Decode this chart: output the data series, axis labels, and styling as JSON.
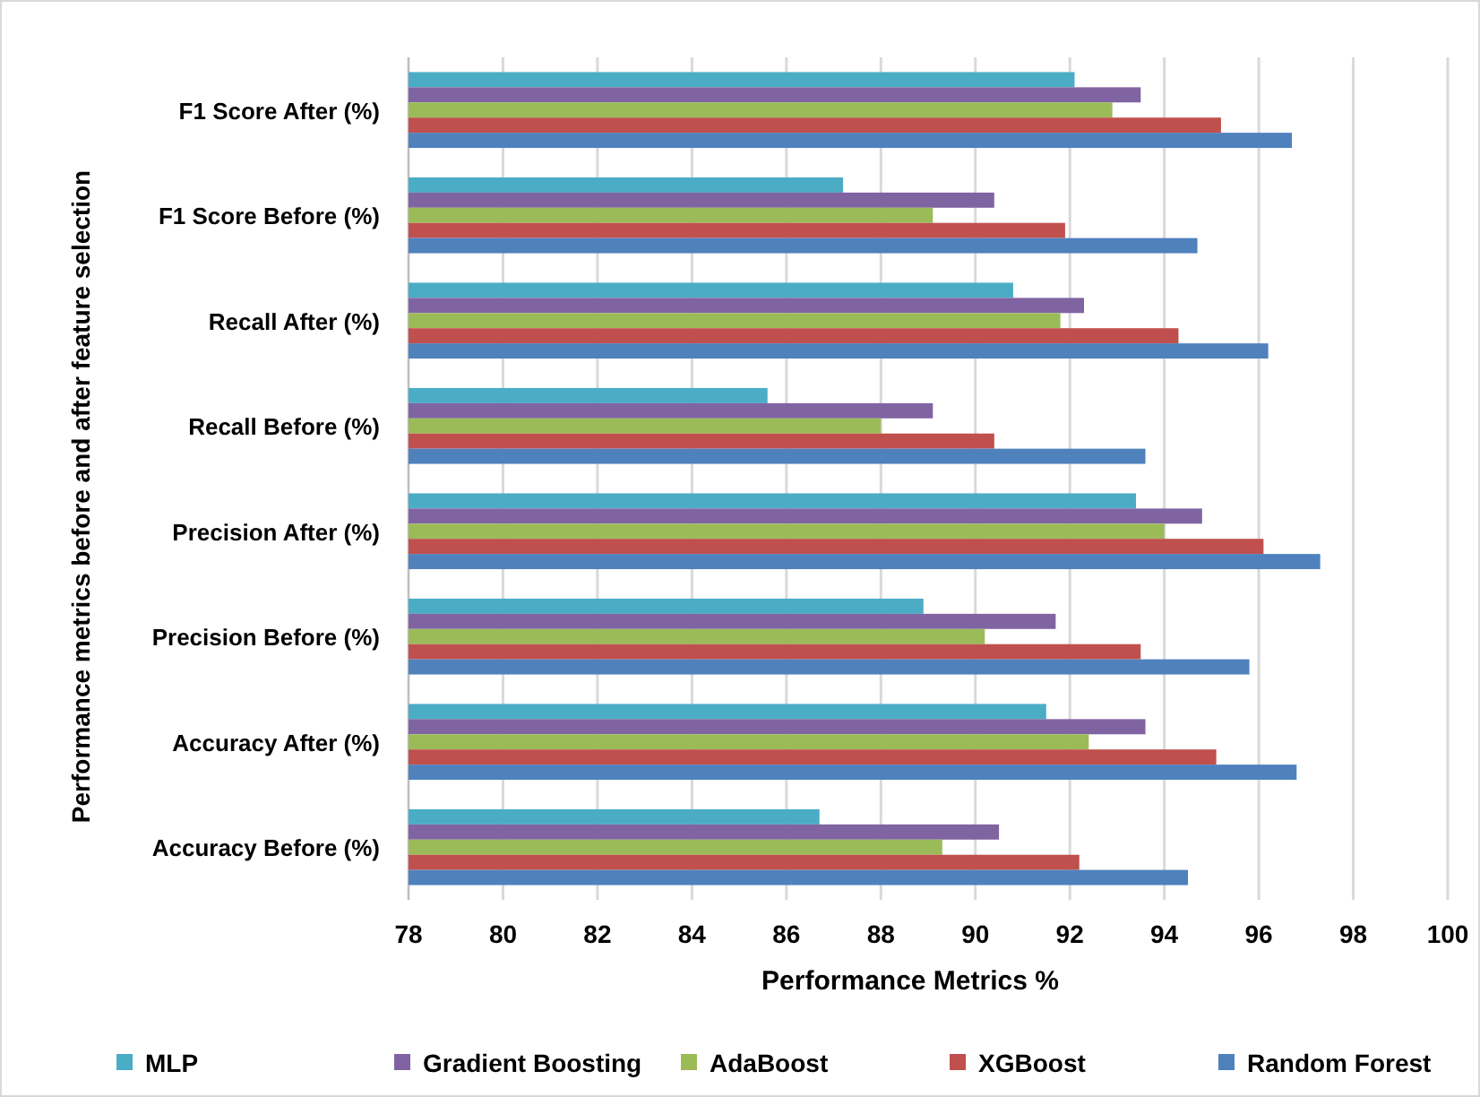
{
  "chart_data": {
    "type": "bar",
    "orientation": "horizontal",
    "xlabel": "Performance Metrics %",
    "ylabel": "Performance metrics before and after feature selection",
    "categories": [
      "F1 Score After (%)",
      "F1 Score Before (%)",
      "Recall After (%)",
      "Recall Before (%)",
      "Precision After (%)",
      "Precision Before (%)",
      "Accuracy After (%)",
      "Accuracy Before (%)"
    ],
    "series": [
      {
        "name": "MLP",
        "color": "#4bacc6",
        "values": [
          92.1,
          87.2,
          90.8,
          85.6,
          93.4,
          88.9,
          91.5,
          86.7
        ]
      },
      {
        "name": "Gradient Boosting",
        "color": "#8064a2",
        "values": [
          93.5,
          90.4,
          92.3,
          89.1,
          94.8,
          91.7,
          93.6,
          90.5
        ]
      },
      {
        "name": "AdaBoost",
        "color": "#9bbb59",
        "values": [
          92.9,
          89.1,
          91.8,
          88.0,
          94.0,
          90.2,
          92.4,
          89.3
        ]
      },
      {
        "name": "XGBoost",
        "color": "#c0504d",
        "values": [
          95.2,
          91.9,
          94.3,
          90.4,
          96.1,
          93.5,
          95.1,
          92.2
        ]
      },
      {
        "name": "Random Forest",
        "color": "#4f81bd",
        "values": [
          96.7,
          94.7,
          96.2,
          93.6,
          97.3,
          95.8,
          96.8,
          94.5
        ]
      }
    ],
    "xlim": [
      78,
      100
    ],
    "xticks": [
      78,
      80,
      82,
      84,
      86,
      88,
      90,
      92,
      94,
      96,
      98,
      100
    ],
    "grid": "x",
    "legend": "bottom"
  }
}
